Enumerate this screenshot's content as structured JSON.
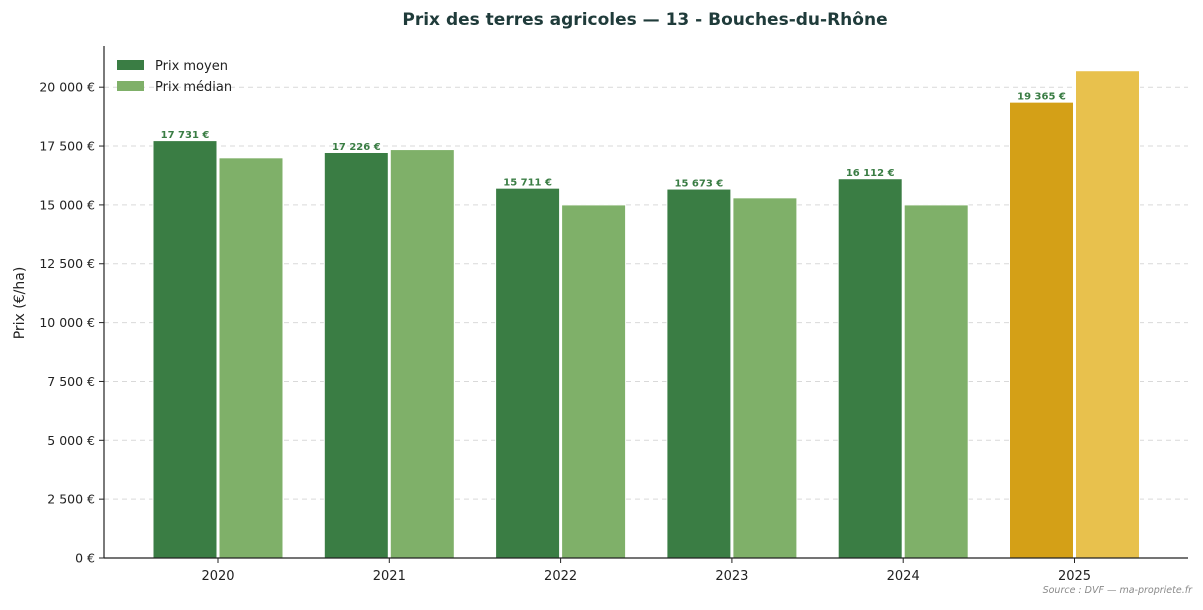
{
  "chart_data": {
    "type": "bar",
    "title": "Prix des terres agricoles — 13 - Bouches-du-Rhône",
    "xlabel": "",
    "ylabel": "Prix (€/ha)",
    "categories": [
      "2020",
      "2021",
      "2022",
      "2023",
      "2024",
      "2025"
    ],
    "series": [
      {
        "name": "Prix moyen",
        "color": "#3a7d44",
        "highlight_color": "#d4a017",
        "values": [
          17731,
          17226,
          15711,
          15673,
          16112,
          19365
        ],
        "labels": [
          "17 731 €",
          "17 226 €",
          "15 711 €",
          "15 673 €",
          "16 112 €",
          "19 365 €"
        ]
      },
      {
        "name": "Prix médian",
        "color": "#7fb069",
        "highlight_color": "#e8c14d",
        "values": [
          17000,
          17350,
          15000,
          15300,
          15000,
          20700
        ]
      }
    ],
    "highlight_category": "2025",
    "ylim": [
      0,
      21750
    ],
    "yticks": [
      0,
      2500,
      5000,
      7500,
      10000,
      12500,
      15000,
      17500,
      20000
    ],
    "ytick_labels": [
      "0 €",
      "2 500 €",
      "5 000 €",
      "7 500 €",
      "10 000 €",
      "12 500 €",
      "15 000 €",
      "17 500 €",
      "20 000 €"
    ],
    "grid": true,
    "legend_position": "top-left",
    "source": "Source : DVF — ma-propriete.fr"
  }
}
